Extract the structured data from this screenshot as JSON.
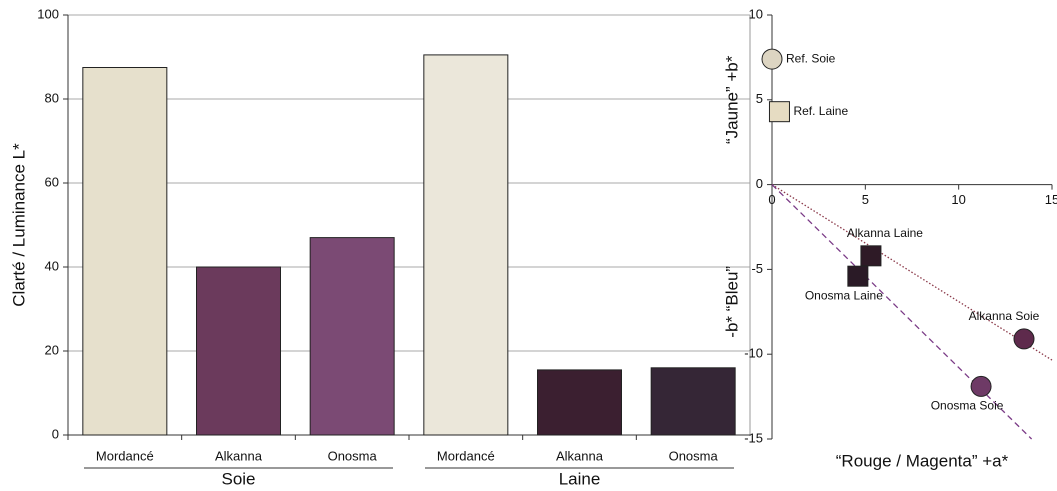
{
  "chart_data": [
    {
      "type": "bar",
      "ylabel": "Clarté / Luminance L*",
      "categories": [
        "Mordancé",
        "Alkanna",
        "Onosma",
        "Mordancé",
        "Alkanna",
        "Onosma"
      ],
      "groups": [
        "Soie",
        "Laine"
      ],
      "values": [
        87.5,
        40,
        47,
        90.5,
        15.5,
        16
      ],
      "colors": [
        "#e6e0cc",
        "#6b3a5c",
        "#7b4a74",
        "#ebe7da",
        "#3b1f30",
        "#352636"
      ],
      "ylim": [
        0,
        100
      ],
      "yticks": [
        0,
        20,
        40,
        60,
        80,
        100
      ],
      "grid": true
    },
    {
      "type": "scatter",
      "xlabel": "“Rouge / Magenta” +a*",
      "ylabel_top": "“Jaune” +b*",
      "ylabel_bottom": "-b* “Bleu”",
      "xlim": [
        0,
        15
      ],
      "ylim": [
        -15,
        10
      ],
      "xticks": [
        0,
        5,
        10,
        15
      ],
      "yticks": [
        -15,
        -10,
        -5,
        0,
        5,
        10
      ],
      "points": [
        {
          "label": "Ref. Soie",
          "x": 0,
          "y": 7.4,
          "marker": "circle",
          "color": "#ddd5c2",
          "label_position": "right"
        },
        {
          "label": "Ref. Laine",
          "x": 0.4,
          "y": 4.3,
          "marker": "square",
          "color": "#e6dcc2",
          "label_position": "right"
        },
        {
          "label": "Alkanna Laine",
          "x": 5.3,
          "y": -4.2,
          "marker": "square",
          "color": "#2e1a26",
          "label_position": "above"
        },
        {
          "label": "Onosma Laine",
          "x": 4.6,
          "y": -5.4,
          "marker": "square",
          "color": "#2a1a26",
          "label_position": "below"
        },
        {
          "label": "Alkanna Soie",
          "x": 13.5,
          "y": -9.1,
          "marker": "circle",
          "color": "#5e2a4c",
          "label_position": "above"
        },
        {
          "label": "Onosma Soie",
          "x": 11.2,
          "y": -11.9,
          "marker": "circle",
          "color": "#6e3a66",
          "label_position": "below"
        }
      ],
      "fits": [
        {
          "style": "dotted",
          "color": "#8b3a4a",
          "through": [
            "Alkanna Laine",
            "Alkanna Soie"
          ]
        },
        {
          "style": "dashed",
          "color": "#7a3a86",
          "through": [
            "Onosma Laine",
            "Onosma Soie"
          ]
        }
      ]
    }
  ]
}
